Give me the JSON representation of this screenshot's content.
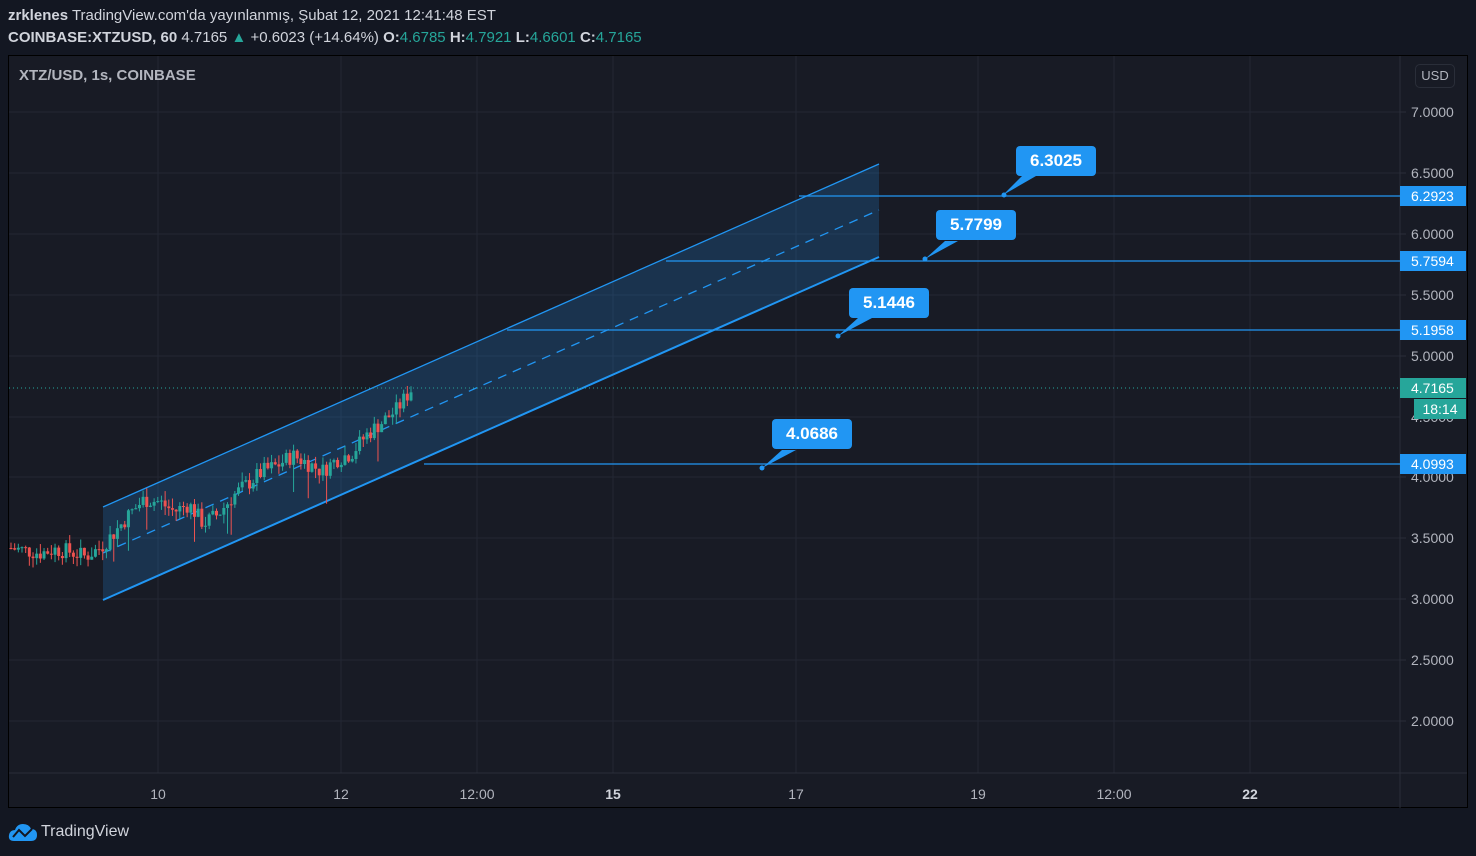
{
  "header": {
    "author": "zrklenes",
    "published": "TradingView.com'da yayınlanmış, Şubat 12, 2021 12:41:48 EST",
    "symbol": "COINBASE:XTZUSD, 60",
    "last": "4.7165",
    "change": "+0.6023 (+14.64%)",
    "o_label": "O:",
    "o": "4.6785",
    "h_label": "H:",
    "h": "4.7921",
    "l_label": "L:",
    "l": "4.6601",
    "c_label": "C:",
    "c": "4.7165"
  },
  "legend": "XTZ/USD, 1s, COINBASE",
  "currency": "USD",
  "price_axis": {
    "ticks": [
      "7.0000",
      "6.5000",
      "6.0000",
      "5.5000",
      "5.0000",
      "4.5000",
      "4.0000",
      "3.5000",
      "3.0000",
      "2.5000",
      "2.0000"
    ],
    "labels": [
      {
        "value": "6.2923",
        "kind": "line"
      },
      {
        "value": "5.7594",
        "kind": "line"
      },
      {
        "value": "5.1958",
        "kind": "line"
      },
      {
        "value": "4.7165",
        "kind": "last"
      },
      {
        "value": "4.0993",
        "kind": "line"
      }
    ],
    "countdown": "18:14"
  },
  "time_axis": {
    "ticks": [
      {
        "label": "10",
        "bold": false
      },
      {
        "label": "12",
        "bold": false
      },
      {
        "label": "12:00",
        "bold": false
      },
      {
        "label": "15",
        "bold": true
      },
      {
        "label": "17",
        "bold": false
      },
      {
        "label": "19",
        "bold": false
      },
      {
        "label": "12:00",
        "bold": false
      },
      {
        "label": "22",
        "bold": true
      }
    ]
  },
  "callouts": [
    "6.3025",
    "5.7799",
    "5.1446",
    "4.0686"
  ],
  "brand": "TradingView",
  "colors": {
    "up": "#26a69a",
    "down": "#ef5350",
    "drawing": "#2196f3",
    "background": "#181b25",
    "grid": "#232734"
  },
  "chart_data": {
    "type": "candlestick",
    "title": "XTZ/USD, 1s, COINBASE",
    "symbol": "COINBASE:XTZUSD",
    "ohlc_last": {
      "open": 4.6785,
      "high": 4.7921,
      "low": 4.6601,
      "close": 4.7165
    },
    "change": 0.6023,
    "change_pct": 14.64,
    "ylim": [
      1.6,
      7.3
    ],
    "y_ticks": [
      2.0,
      2.5,
      3.0,
      3.5,
      4.0,
      4.5,
      5.0,
      5.5,
      6.0,
      6.5,
      7.0
    ],
    "x_ticks": [
      "10",
      "12",
      "12:00",
      "15",
      "17",
      "19",
      "12:00",
      "22"
    ],
    "price_trend": {
      "description": "Consolidation near 3.4 then steady uptrend inside an ascending parallel channel to ~4.72",
      "approx_closes": [
        3.42,
        3.4,
        3.38,
        3.41,
        3.39,
        3.35,
        3.42,
        3.55,
        3.7,
        3.82,
        3.8,
        3.72,
        3.78,
        3.62,
        3.7,
        3.85,
        3.95,
        4.05,
        4.1,
        4.18,
        4.12,
        4.05,
        4.15,
        4.2,
        4.35,
        4.45,
        4.55,
        4.72
      ]
    },
    "channel": {
      "type": "parallel_channel",
      "upper": {
        "start": 3.75,
        "end": 6.55
      },
      "lower": {
        "start": 2.99,
        "end": 5.79
      },
      "median": "dashed"
    },
    "horizontal_lines": [
      6.2923,
      5.7594,
      5.1958,
      4.0993
    ],
    "price_notes": [
      6.3025,
      5.7799,
      5.1446,
      4.0686
    ],
    "last_price_line": 4.7165
  }
}
